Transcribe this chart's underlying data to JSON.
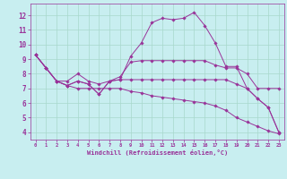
{
  "xlabel": "Windchill (Refroidissement éolien,°C)",
  "x_ticks": [
    0,
    1,
    2,
    3,
    4,
    5,
    6,
    7,
    8,
    9,
    10,
    11,
    12,
    13,
    14,
    15,
    16,
    17,
    18,
    19,
    20,
    21,
    22,
    23
  ],
  "y_ticks": [
    4,
    5,
    6,
    7,
    8,
    9,
    10,
    11,
    12
  ],
  "ylim": [
    3.5,
    12.8
  ],
  "xlim": [
    -0.5,
    23.5
  ],
  "background_color": "#c8eef0",
  "line_color": "#993399",
  "grid_color": "#a8d8cc",
  "series": [
    [
      9.3,
      8.4,
      7.5,
      7.2,
      7.5,
      7.3,
      6.6,
      7.5,
      7.6,
      9.2,
      10.1,
      11.5,
      11.8,
      11.7,
      11.8,
      12.2,
      11.3,
      10.1,
      8.5,
      8.5,
      7.0,
      6.3,
      5.7,
      4.0
    ],
    [
      9.3,
      8.4,
      7.5,
      7.5,
      8.0,
      7.5,
      7.3,
      7.5,
      7.8,
      8.8,
      8.9,
      8.9,
      8.9,
      8.9,
      8.9,
      8.9,
      8.9,
      8.6,
      8.4,
      8.4,
      8.0,
      7.0,
      7.0,
      7.0
    ],
    [
      9.3,
      8.4,
      7.5,
      7.2,
      7.5,
      7.3,
      6.6,
      7.5,
      7.6,
      7.6,
      7.6,
      7.6,
      7.6,
      7.6,
      7.6,
      7.6,
      7.6,
      7.6,
      7.6,
      7.3,
      7.0,
      6.3,
      5.7,
      4.0
    ],
    [
      9.3,
      8.4,
      7.5,
      7.2,
      7.0,
      7.0,
      7.0,
      7.0,
      7.0,
      6.8,
      6.7,
      6.5,
      6.4,
      6.3,
      6.2,
      6.1,
      6.0,
      5.8,
      5.5,
      5.0,
      4.7,
      4.4,
      4.1,
      3.9
    ]
  ]
}
